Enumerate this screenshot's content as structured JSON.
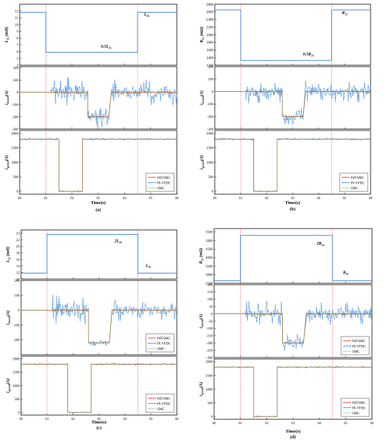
{
  "colors": {
    "pdtsmc": "#ff3b3b",
    "pivfdc": "#2f7fdc",
    "smc": "#3cb43c",
    "vline": "#e53333",
    "param": "#4a86d8"
  },
  "chart_data": [
    {
      "id": "a",
      "type": "line",
      "caption": "(a)",
      "xlabel": "Time(s)",
      "xlim": [
        60,
        66
      ],
      "xticks": [
        "60",
        "61",
        "62",
        "63",
        "64",
        "65",
        "66"
      ],
      "event_times": [
        61,
        64.5
      ],
      "panels": [
        {
          "kind": "param",
          "ylabel": "L_2s (mH)",
          "ylim": [
            4,
            13
          ],
          "yticks": [
            "4",
            "5",
            "6",
            "7",
            "8",
            "9",
            "10",
            "11",
            "12"
          ],
          "series": [
            {
              "x": [
                60,
                61,
                61,
                64.5,
                64.5,
                66
              ],
              "y": [
                11.8,
                11.8,
                5.9,
                5.9,
                11.8,
                11.8
              ]
            }
          ],
          "annotations": [
            {
              "text": "L_2s",
              "at": [
                64.75,
                11.3
              ]
            },
            {
              "text": "0.5L_2s",
              "at": [
                63.1,
                6.6
              ]
            }
          ]
        },
        {
          "kind": "current",
          "ylabel": "i_dsend(A)",
          "ylim": [
            -300,
            210
          ],
          "yticks": [
            "-300",
            "-200",
            "-100",
            "0",
            "100",
            "200"
          ],
          "segments": [
            {
              "x": [
                60,
                61.2
              ],
              "level": 0,
              "noise": 0
            },
            {
              "x": [
                61.2,
                62.6
              ],
              "level": 0,
              "noise": 80
            },
            {
              "x": [
                62.6,
                63.4
              ],
              "level": -200,
              "noise": 60
            },
            {
              "x": [
                63.5,
                66
              ],
              "level": 0,
              "noise": 70
            }
          ],
          "legend": []
        },
        {
          "kind": "current",
          "ylabel": "i_qsend(A)",
          "ylim": [
            -100,
            2100
          ],
          "yticks": [
            "0",
            "500",
            "1000",
            "1500",
            "2000"
          ],
          "segments": [
            {
              "x": [
                60,
                61.5
              ],
              "level": 1800,
              "noise": 25
            },
            {
              "x": [
                61.5,
                62.4
              ],
              "level": 0,
              "noise": 20
            },
            {
              "x": [
                62.4,
                66
              ],
              "level": 1800,
              "noise": 25
            }
          ],
          "legend": [
            "PdTSMC",
            "PI-VFDC",
            "SMC"
          ]
        }
      ]
    },
    {
      "id": "b",
      "type": "line",
      "caption": "(b)",
      "xlabel": "Time(s)",
      "xlim": [
        60,
        66
      ],
      "xticks": [
        "60",
        "61",
        "62",
        "63",
        "64",
        "65",
        "66"
      ],
      "event_times": [
        61,
        64.5
      ],
      "panels": [
        {
          "kind": "param",
          "ylabel": "R_2s (mΩ)",
          "ylim": [
            1200,
            2800
          ],
          "yticks": [
            "1200",
            "1400",
            "1600",
            "1800",
            "2000",
            "2200",
            "2400",
            "2600",
            "2800"
          ],
          "series": [
            {
              "x": [
                60,
                61,
                61,
                64.5,
                64.5,
                66
              ],
              "y": [
                2650,
                2650,
                1325,
                1325,
                2650,
                2650
              ]
            }
          ],
          "annotations": [
            {
              "text": "R_2s",
              "at": [
                64.9,
                2540
              ]
            },
            {
              "text": "0.5R_2s",
              "at": [
                63.4,
                1460
              ]
            }
          ]
        },
        {
          "kind": "current",
          "ylabel": "i_dsend(A)",
          "ylim": [
            -300,
            200
          ],
          "yticks": [
            "-300",
            "-200",
            "-100",
            "0",
            "100",
            "200"
          ],
          "segments": [
            {
              "x": [
                60,
                61.2
              ],
              "level": 0,
              "noise": 0
            },
            {
              "x": [
                61.2,
                62.6
              ],
              "level": 0,
              "noise": 60
            },
            {
              "x": [
                62.6,
                63.4
              ],
              "level": -200,
              "noise": 50
            },
            {
              "x": [
                63.5,
                66
              ],
              "level": 0,
              "noise": 55
            }
          ],
          "legend": []
        },
        {
          "kind": "current",
          "ylabel": "i_qsend(A)",
          "ylim": [
            -100,
            2100
          ],
          "yticks": [
            "0",
            "500",
            "1000",
            "1500",
            "2000"
          ],
          "segments": [
            {
              "x": [
                60,
                61.5
              ],
              "level": 1800,
              "noise": 25
            },
            {
              "x": [
                61.5,
                62.4
              ],
              "level": 0,
              "noise": 20
            },
            {
              "x": [
                62.4,
                66
              ],
              "level": 1800,
              "noise": 25
            }
          ],
          "legend": [
            "PdTSMC",
            "PI-VFDC",
            "SMC"
          ]
        }
      ]
    },
    {
      "id": "c",
      "type": "line",
      "caption": "(c)",
      "xlabel": "Time(s)",
      "xlim": [
        60,
        66
      ],
      "xticks": [
        "60",
        "61",
        "62",
        "63",
        "64",
        "65",
        "66"
      ],
      "event_times": [
        61,
        64.5
      ],
      "panels": [
        {
          "kind": "param",
          "ylabel": "L_2s (mH)",
          "ylim": [
            10,
            25
          ],
          "yticks": [
            "10",
            "12",
            "14",
            "16",
            "18",
            "20",
            "22",
            "24"
          ],
          "series": [
            {
              "x": [
                60,
                61,
                61,
                64.5,
                64.5,
                66
              ],
              "y": [
                11.8,
                11.8,
                23.6,
                23.6,
                11.8,
                11.8
              ]
            }
          ],
          "annotations": [
            {
              "text": "2L_2s",
              "at": [
                63.6,
                21.3
              ]
            },
            {
              "text": "L_2s",
              "at": [
                64.8,
                13.8
              ]
            }
          ]
        },
        {
          "kind": "current",
          "ylabel": "i_dsend(A)",
          "ylim": [
            -300,
            200
          ],
          "yticks": [
            "-200",
            "-100",
            "0",
            "100",
            "200"
          ],
          "segments": [
            {
              "x": [
                60,
                61.2
              ],
              "level": 0,
              "noise": 0
            },
            {
              "x": [
                61.2,
                62.6
              ],
              "level": 0,
              "noise": 70
            },
            {
              "x": [
                62.6,
                63.4
              ],
              "level": -220,
              "noise": 15
            },
            {
              "x": [
                63.5,
                66
              ],
              "level": 0,
              "noise": 45
            }
          ],
          "legend": [
            "PdTSMC",
            "PI-VFDC",
            "SMC"
          ]
        },
        {
          "kind": "current",
          "ylabel": "i_qsend(A)",
          "ylim": [
            -100,
            2100
          ],
          "yticks": [
            "0",
            "500",
            "1000",
            "1500",
            "2000"
          ],
          "segments": [
            {
              "x": [
                60,
                61.8
              ],
              "level": 1800,
              "noise": 25
            },
            {
              "x": [
                61.8,
                62.7
              ],
              "level": 0,
              "noise": 20
            },
            {
              "x": [
                62.7,
                66
              ],
              "level": 1800,
              "noise": 25
            }
          ],
          "legend": [
            "PdTSMC",
            "PI-VFDC",
            "SMC"
          ]
        }
      ]
    },
    {
      "id": "d",
      "type": "line",
      "caption": "(d)",
      "xlabel": "Time(s)",
      "xlim": [
        60,
        66
      ],
      "xticks": [
        "60",
        "61",
        "62",
        "63",
        "64",
        "65",
        "66"
      ],
      "event_times": [
        61,
        64.5
      ],
      "panels": [
        {
          "kind": "param",
          "ylabel": "R_2s (mΩ)",
          "ylim": [
            2500,
            5700
          ],
          "yticks": [
            "2500",
            "3000",
            "3500",
            "4000",
            "4500",
            "5000",
            "5500"
          ],
          "series": [
            {
              "x": [
                60,
                61,
                61,
                64.5,
                64.5,
                66
              ],
              "y": [
                2650,
                2650,
                5300,
                5300,
                2650,
                2650
              ]
            }
          ],
          "annotations": [
            {
              "text": "2R_2s",
              "at": [
                63.9,
                4750
              ]
            },
            {
              "text": "R_2s",
              "at": [
                64.9,
                3050
              ]
            }
          ]
        },
        {
          "kind": "current",
          "ylabel": "i_dsend(A)",
          "ylim": [
            -300,
            200
          ],
          "yticks": [
            "-300",
            "-250",
            "-200",
            "-150",
            "-100",
            "-50",
            "0",
            "50",
            "100",
            "150",
            "200"
          ],
          "segments": [
            {
              "x": [
                60,
                61.2
              ],
              "level": 0,
              "noise": 0
            },
            {
              "x": [
                61.2,
                62.6
              ],
              "level": 0,
              "noise": 55
            },
            {
              "x": [
                62.6,
                63.4
              ],
              "level": -200,
              "noise": 40
            },
            {
              "x": [
                63.5,
                66
              ],
              "level": 0,
              "noise": 50
            }
          ],
          "legend": [
            "PdTSMC",
            "PI-VFDC",
            "SMC"
          ]
        },
        {
          "kind": "current",
          "ylabel": "i_qsend(A)",
          "ylim": [
            -100,
            2100
          ],
          "yticks": [
            "0",
            "500",
            "1000",
            "1500",
            "2000"
          ],
          "segments": [
            {
              "x": [
                60,
                61.5
              ],
              "level": 1800,
              "noise": 25
            },
            {
              "x": [
                61.5,
                62.4
              ],
              "level": 0,
              "noise": 20
            },
            {
              "x": [
                62.4,
                66
              ],
              "level": 1800,
              "noise": 25
            }
          ],
          "legend": [
            "PdTSMC",
            "PI-VFDC",
            "SMC"
          ]
        }
      ]
    }
  ]
}
